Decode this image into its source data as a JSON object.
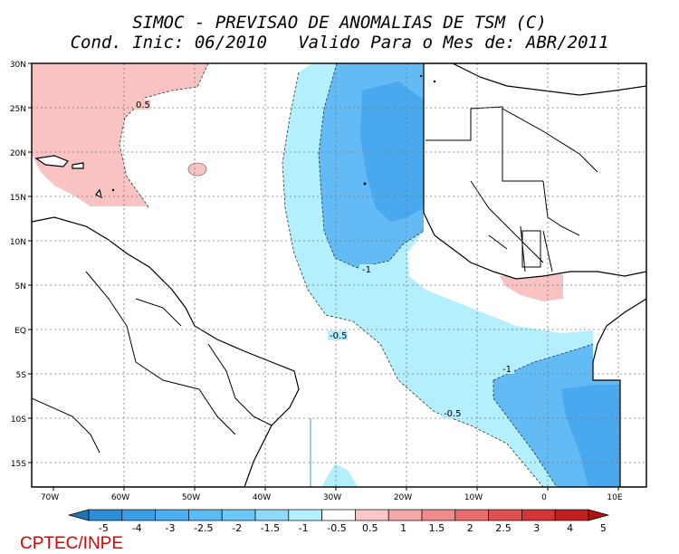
{
  "title": {
    "line1": "SIMOC - PREVISAO DE ANOMALIAS DE TSM (C)",
    "line2": "Cond. Inic: 06/2010   Valido Para o Mes de: ABR/2011"
  },
  "axes": {
    "lat_labels": [
      "30N",
      "25N",
      "20N",
      "15N",
      "10N",
      "5N",
      "EQ",
      "5S",
      "10S",
      "15S"
    ],
    "lon_labels": [
      "70W",
      "60W",
      "50W",
      "40W",
      "30W",
      "20W",
      "10W",
      "0",
      "10E"
    ]
  },
  "contour_labels": [
    "0.5",
    "-1",
    "-0.5",
    "-1",
    "-0.5"
  ],
  "colorbar": {
    "labels": [
      "-5",
      "-4",
      "-3",
      "-2.5",
      "-2",
      "-1.5",
      "-1",
      "-0.5",
      "0.5",
      "1",
      "1.5",
      "2",
      "2.5",
      "3",
      "4",
      "5"
    ],
    "colors": [
      "#1f78b4",
      "#2b8ed6",
      "#3a9ee6",
      "#4aaef0",
      "#5bbcf5",
      "#6ccaf8",
      "#8fdafc",
      "#b3effd",
      "#ffffff",
      "#fbc7c7",
      "#f6a8a8",
      "#f08b8b",
      "#e96d6d",
      "#e05050",
      "#d43535",
      "#c11f1f",
      "#b01212"
    ]
  },
  "credit": "CPTEC/INPE"
}
